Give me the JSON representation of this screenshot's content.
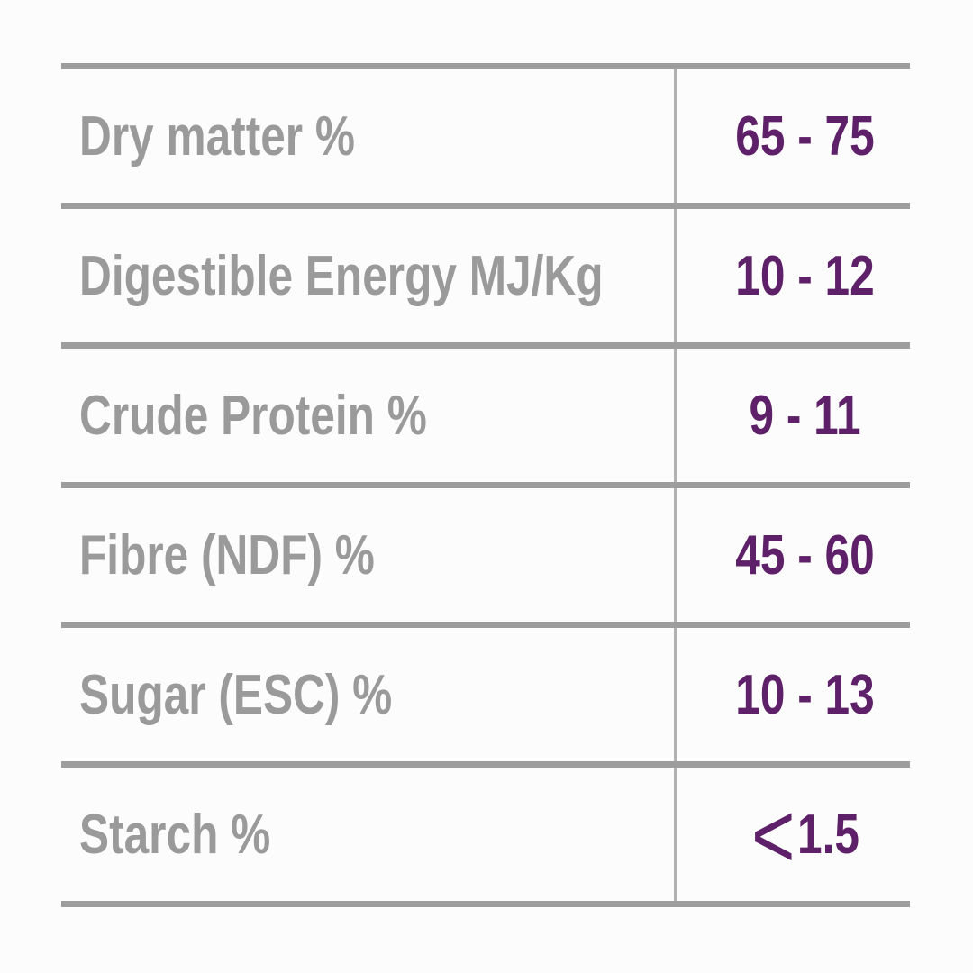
{
  "chart_data": {
    "type": "table",
    "title": "",
    "rows": [
      [
        "Dry matter %",
        "65 - 75"
      ],
      [
        "Digestible Energy MJ/Kg",
        "10 - 12"
      ],
      [
        "Crude Protein %",
        "9 - 11"
      ],
      [
        "Fibre (NDF) %",
        "45 - 60"
      ],
      [
        "Sugar (ESC) %",
        "10 - 13"
      ],
      [
        "Starch %",
        "<1.5"
      ]
    ]
  },
  "table": {
    "rows": [
      {
        "label": "Dry matter %",
        "value": "65 - 75"
      },
      {
        "label": "Digestible Energy MJ/Kg",
        "value": "10 - 12"
      },
      {
        "label": "Crude Protein %",
        "value": "9 - 11"
      },
      {
        "label": "Fibre (NDF) %",
        "value": "45 - 60"
      },
      {
        "label": "Sugar (ESC) %",
        "value": "10 - 13"
      },
      {
        "label": "Starch %",
        "value_prefix": "<",
        "value": "1.5"
      }
    ]
  },
  "colors": {
    "label_text": "#9a9a9a",
    "value_text": "#5e2068",
    "horizontal_line": "#9d9d9d",
    "vertical_line": "#b1b1b1",
    "background": "#fcfcfc"
  }
}
